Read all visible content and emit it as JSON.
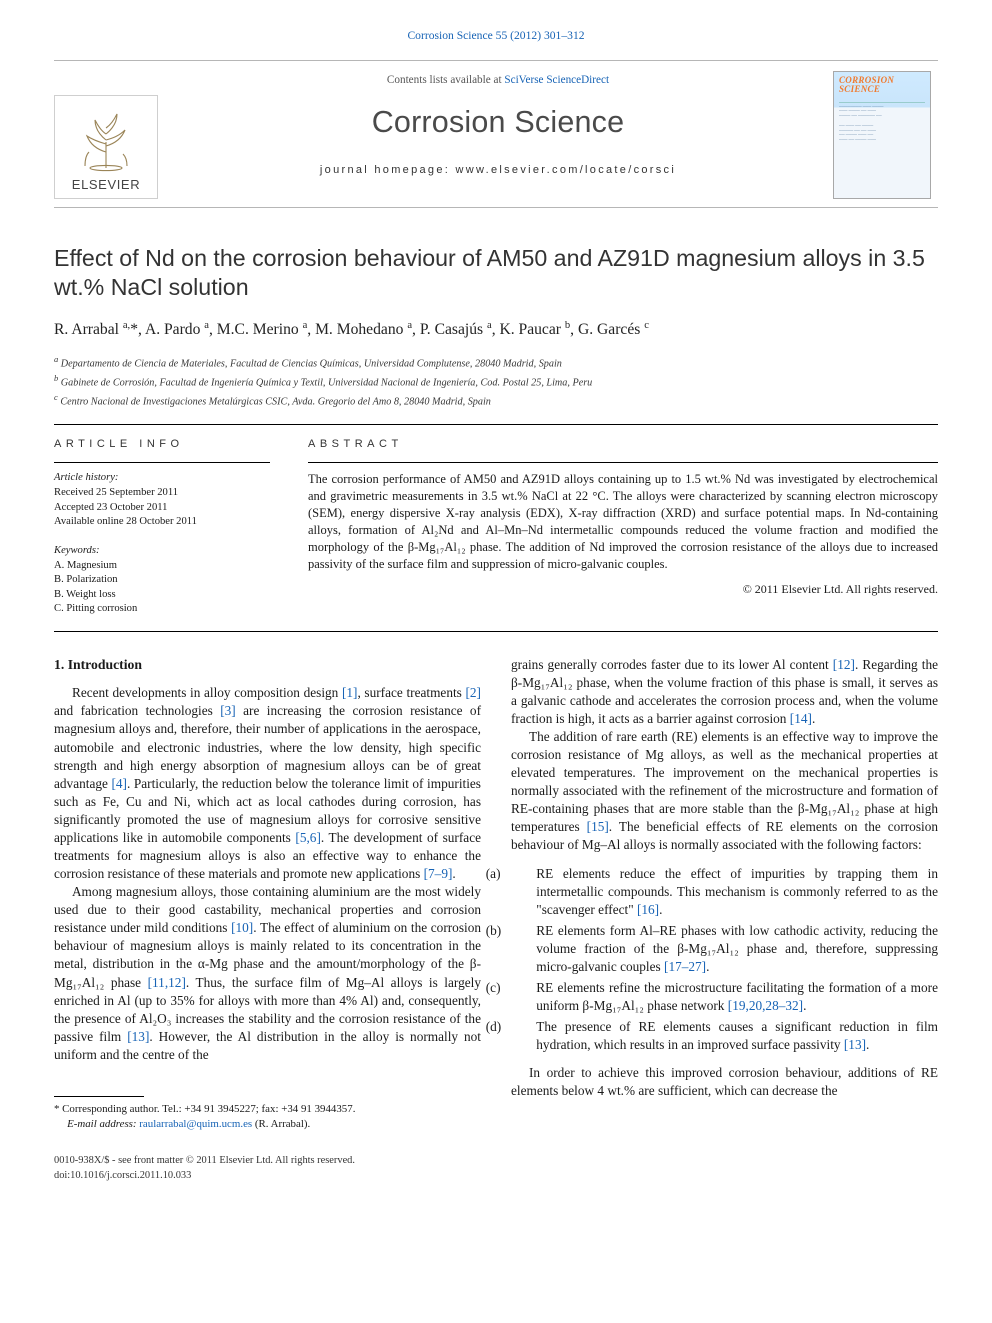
{
  "colors": {
    "link": "#1763b5",
    "text": "#1a1a1a",
    "rule": "#000000",
    "masthead_border": "#b6b6b6",
    "journal_name": "#4a4a4a",
    "cover_title": "#f07a2f",
    "cover_bg_top": "#cfeaff",
    "cover_bg_bottom": "#f1f6fb"
  },
  "typography": {
    "body_pt": 13.3,
    "title_pt": 23.2,
    "journal_pt": 30.5,
    "authors_pt": 15.6,
    "small_pt": 10.6
  },
  "citation_line": "Corrosion Science 55 (2012) 301–312",
  "masthead": {
    "contents_prefix": "Contents lists available at ",
    "contents_link": "SciVerse ScienceDirect",
    "journal": "Corrosion Science",
    "homepage_prefix": "journal homepage: ",
    "homepage_url": "www.elsevier.com/locate/corsci",
    "publisher": "ELSEVIER",
    "cover_title_1": "CORROSION",
    "cover_title_2": "SCIENCE"
  },
  "article": {
    "title": "Effect of Nd on the corrosion behaviour of AM50 and AZ91D magnesium alloys in 3.5 wt.% NaCl solution",
    "authors_html": "R. Arrabal <sup>a,</sup>*, A. Pardo <sup>a</sup>, M.C. Merino <sup>a</sup>, M. Mohedano <sup>a</sup>, P. Casajús <sup>a</sup>, K. Paucar <sup>b</sup>, G. Garcés <sup>c</sup>",
    "affiliations": {
      "a": "Departamento de Ciencia de Materiales, Facultad de Ciencias Químicas, Universidad Complutense, 28040 Madrid, Spain",
      "b": "Gabinete de Corrosión, Facultad de Ingeniería Química y Textil, Universidad Nacional de Ingeniería, Cod. Postal 25, Lima, Peru",
      "c": "Centro Nacional de Investigaciones Metalúrgicas CSIC, Avda. Gregorio del Amo 8, 28040 Madrid, Spain"
    }
  },
  "info": {
    "article_info_head": "ARTICLE INFO",
    "abstract_head": "ABSTRACT",
    "history_label": "Article history:",
    "received": "Received 25 September 2011",
    "accepted": "Accepted 23 October 2011",
    "online": "Available online 28 October 2011",
    "keywords_label": "Keywords:",
    "keywords": [
      "A. Magnesium",
      "B. Polarization",
      "B. Weight loss",
      "C. Pitting corrosion"
    ]
  },
  "abstract": "The corrosion performance of AM50 and AZ91D alloys containing up to 1.5 wt.% Nd was investigated by electrochemical and gravimetric measurements in 3.5 wt.% NaCl at 22 °C. The alloys were characterized by scanning electron microscopy (SEM), energy dispersive X-ray analysis (EDX), X-ray diffraction (XRD) and surface potential maps. In Nd-containing alloys, formation of Al₂Nd and Al–Mn–Nd intermetallic compounds reduced the volume fraction and modified the morphology of the β-Mg₁₇Al₁₂ phase. The addition of Nd improved the corrosion resistance of the alloys due to increased passivity of the surface film and suppression of micro-galvanic couples.",
  "copyright": "© 2011 Elsevier Ltd. All rights reserved.",
  "sections": {
    "intro_head": "1. Introduction",
    "p1a": "Recent developments in alloy composition design ",
    "p1b": ", surface treatments ",
    "p1c": " and fabrication technologies ",
    "p1d": " are increasing the corrosion resistance of magnesium alloys and, therefore, their number of applications in the aerospace, automobile and electronic industries, where the low density, high specific strength and high energy absorption of magnesium alloys can be of great advantage ",
    "p1e": ". Particularly, the reduction below the tolerance limit of impurities such as Fe, Cu and Ni, which act as local cathodes during corrosion, has significantly promoted the use of magnesium alloys for corrosive sensitive applications like in automobile components ",
    "p1f": ". The development of surface treatments for magnesium alloys is also an effective way to enhance the corrosion resistance of these materials and promote new applications ",
    "p1g": ".",
    "p2a": "Among magnesium alloys, those containing aluminium are the most widely used due to their good castability, mechanical properties and corrosion resistance under mild conditions ",
    "p2b": ". The effect of aluminium on the corrosion behaviour of magnesium alloys is mainly related to its concentration in the metal, distribution in the α-Mg phase and the amount/morphology of the β-Mg₁₇Al₁₂ phase ",
    "p2c": ". Thus, the surface film of Mg–Al alloys is largely enriched in Al (up to 35% for alloys with more than 4% Al) and, consequently, the presence of Al₂O₃ increases the stability and the corrosion resistance of the passive film ",
    "p2d": ". However, the Al distribution in the alloy is normally not uniform and the centre of the",
    "p3a": "grains generally corrodes faster due to its lower Al content ",
    "p3b": ". Regarding the β-Mg₁₇Al₁₂ phase, when the volume fraction of this phase is small, it serves as a galvanic cathode and accelerates the corrosion process and, when the volume fraction is high, it acts as a barrier against corrosion ",
    "p3c": ".",
    "p4a": "The addition of rare earth (RE) elements is an effective way to improve the corrosion resistance of Mg alloys, as well as the mechanical properties at elevated temperatures. The improvement on the mechanical properties is normally associated with the refinement of the microstructure and formation of RE-containing phases that are more stable than the β-Mg₁₇Al₁₂ phase at high temperatures ",
    "p4b": ". The beneficial effects of RE elements on the corrosion behaviour of Mg–Al alloys is normally associated with the following factors:",
    "factor_a_1": "RE elements reduce the effect of impurities by trapping them in intermetallic compounds. This mechanism is commonly referred to as the \"scavenger effect\" ",
    "factor_a_2": ".",
    "factor_b_1": "RE elements form Al–RE phases with low cathodic activity, reducing the volume fraction of the β-Mg₁₇Al₁₂ phase and, therefore, suppressing micro-galvanic couples ",
    "factor_b_2": ".",
    "factor_c_1": "RE elements refine the microstructure facilitating the formation of a more uniform β-Mg₁₇Al₁₂ phase network ",
    "factor_c_2": ".",
    "factor_d_1": "The presence of RE elements causes a significant reduction in film hydration, which results in an improved surface passivity ",
    "factor_d_2": ".",
    "p5": "In order to achieve this improved corrosion behaviour, additions of RE elements below 4 wt.% are sufficient, which can decrease the"
  },
  "refs": {
    "r1": "[1]",
    "r2": "[2]",
    "r3": "[3]",
    "r4": "[4]",
    "r56": "[5,6]",
    "r79": "[7–9]",
    "r10": "[10]",
    "r1112": "[11,12]",
    "r13": "[13]",
    "r12": "[12]",
    "r14": "[14]",
    "r15": "[15]",
    "r16": "[16]",
    "r1727": "[17–27]",
    "r192832": "[19,20,28–32]",
    "r13b": "[13]"
  },
  "footnote": {
    "star": "* Corresponding author. Tel.: +34 91 3945227; fax: +34 91 3944357.",
    "email_label": "E-mail address:",
    "email": "raularrabal@quim.ucm.es",
    "email_who": "(R. Arrabal)."
  },
  "bottom": {
    "line1": "0010-938X/$ - see front matter © 2011 Elsevier Ltd. All rights reserved.",
    "doi": "doi:10.1016/j.corsci.2011.10.033"
  }
}
